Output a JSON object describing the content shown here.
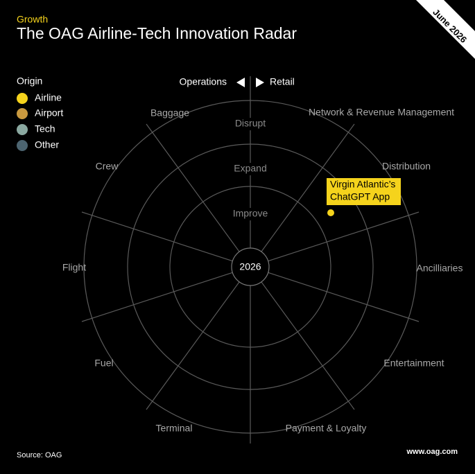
{
  "header": {
    "tag": "Growth",
    "title": "The OAG Airline-Tech Innovation Radar",
    "date": "June 2026"
  },
  "legend": {
    "title": "Origin",
    "items": [
      {
        "label": "Airline",
        "color": "#f5d31c"
      },
      {
        "label": "Airport",
        "color": "#c9993f"
      },
      {
        "label": "Tech",
        "color": "#8aa8a0"
      },
      {
        "label": "Other",
        "color": "#4c6470"
      }
    ]
  },
  "axis": {
    "left": "Operations",
    "right": "Retail"
  },
  "rings": [
    "Disrupt",
    "Expand",
    "Improve"
  ],
  "center": "2026",
  "categories": [
    "Baggage",
    "Network & Revenue Management",
    "Crew",
    "Distribution",
    "Flight",
    "Ancilliaries",
    "Fuel",
    "Entertainment",
    "Terminal",
    "Payment & Loyalty"
  ],
  "items": [
    {
      "label": "Virgin Atlantic’s ChatGPT App",
      "lines": [
        "Virgin Atlantic’s",
        "ChatGPT App"
      ],
      "origin": "Airline"
    }
  ],
  "footer": {
    "source": "Source: OAG",
    "url": "www.oag.com"
  }
}
